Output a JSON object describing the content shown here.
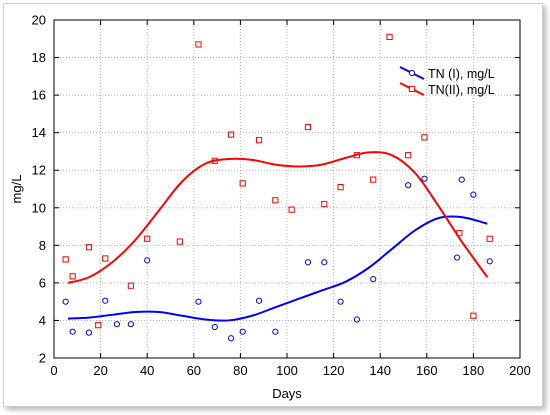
{
  "chart_data": {
    "type": "scatter",
    "title": "",
    "xlabel": "Days",
    "ylabel": "mg/L",
    "xlim": [
      0,
      200
    ],
    "ylim": [
      2,
      20
    ],
    "x_ticks": [
      0,
      20,
      40,
      60,
      80,
      100,
      120,
      140,
      160,
      180,
      200
    ],
    "y_ticks": [
      2,
      4,
      6,
      8,
      10,
      12,
      14,
      16,
      18,
      20
    ],
    "grid": true,
    "grid_style": "dotted",
    "legend_position": "top-right",
    "series": [
      {
        "name": "TN (I), mg/L",
        "color": "#0000ff",
        "marker": "circle",
        "points": [
          [
            5,
            5.0
          ],
          [
            8,
            3.4
          ],
          [
            15,
            3.35
          ],
          [
            22,
            5.05
          ],
          [
            27,
            3.8
          ],
          [
            33,
            3.8
          ],
          [
            40,
            7.2
          ],
          [
            62,
            5.0
          ],
          [
            69,
            3.65
          ],
          [
            76,
            3.05
          ],
          [
            81,
            3.4
          ],
          [
            88,
            5.05
          ],
          [
            95,
            3.4
          ],
          [
            109,
            7.1
          ],
          [
            116,
            7.1
          ],
          [
            123,
            5.0
          ],
          [
            130,
            4.05
          ],
          [
            137,
            6.2
          ],
          [
            152,
            11.2
          ],
          [
            159,
            11.55
          ],
          [
            173,
            7.35
          ],
          [
            175,
            11.5
          ],
          [
            180,
            10.7
          ],
          [
            187,
            7.15
          ]
        ],
        "smooth_curve": [
          [
            6,
            4.1
          ],
          [
            15,
            4.15
          ],
          [
            25,
            4.3
          ],
          [
            35,
            4.45
          ],
          [
            45,
            4.45
          ],
          [
            55,
            4.25
          ],
          [
            65,
            4.05
          ],
          [
            75,
            4.0
          ],
          [
            85,
            4.25
          ],
          [
            95,
            4.7
          ],
          [
            105,
            5.15
          ],
          [
            115,
            5.6
          ],
          [
            125,
            6.05
          ],
          [
            135,
            6.8
          ],
          [
            145,
            7.8
          ],
          [
            155,
            8.8
          ],
          [
            165,
            9.45
          ],
          [
            175,
            9.5
          ],
          [
            186,
            9.15
          ]
        ]
      },
      {
        "name": "TN(II), mg/L",
        "color": "#ff0000",
        "marker": "square",
        "points": [
          [
            5,
            7.25
          ],
          [
            8,
            6.35
          ],
          [
            15,
            7.9
          ],
          [
            19,
            3.75
          ],
          [
            22,
            7.3
          ],
          [
            33,
            5.85
          ],
          [
            40,
            8.35
          ],
          [
            54,
            8.2
          ],
          [
            62,
            18.7
          ],
          [
            69,
            12.5
          ],
          [
            76,
            13.9
          ],
          [
            81,
            11.3
          ],
          [
            88,
            13.6
          ],
          [
            95,
            10.4
          ],
          [
            102,
            9.9
          ],
          [
            109,
            14.3
          ],
          [
            116,
            10.2
          ],
          [
            123,
            11.1
          ],
          [
            130,
            12.8
          ],
          [
            137,
            11.5
          ],
          [
            144,
            19.1
          ],
          [
            152,
            12.8
          ],
          [
            159,
            13.75
          ],
          [
            174,
            8.65
          ],
          [
            180,
            4.25
          ],
          [
            187,
            8.35
          ]
        ],
        "smooth_curve": [
          [
            6,
            6.0
          ],
          [
            15,
            6.3
          ],
          [
            25,
            7.1
          ],
          [
            35,
            8.3
          ],
          [
            45,
            9.85
          ],
          [
            55,
            11.4
          ],
          [
            65,
            12.35
          ],
          [
            75,
            12.6
          ],
          [
            85,
            12.55
          ],
          [
            95,
            12.3
          ],
          [
            105,
            12.2
          ],
          [
            115,
            12.3
          ],
          [
            125,
            12.65
          ],
          [
            135,
            12.95
          ],
          [
            145,
            12.8
          ],
          [
            155,
            11.85
          ],
          [
            165,
            10.1
          ],
          [
            175,
            8.2
          ],
          [
            186,
            6.3
          ]
        ]
      }
    ]
  }
}
